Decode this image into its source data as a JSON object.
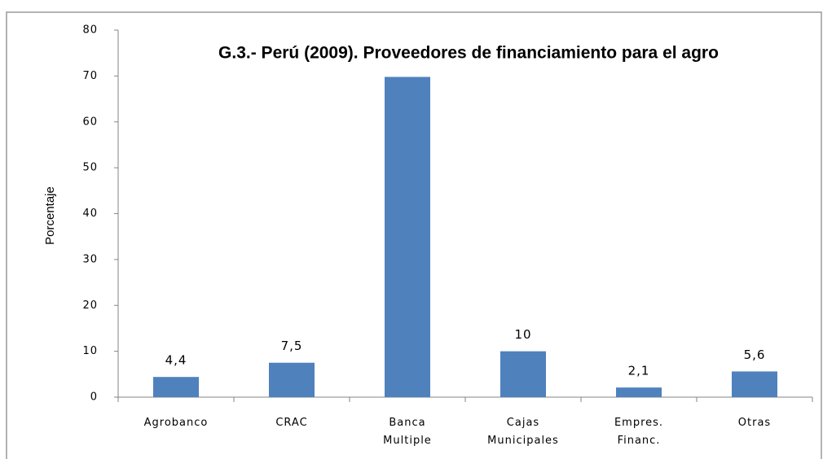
{
  "chart_data": {
    "type": "bar",
    "title": "G.3.- Perú (2009). Proveedores de financiamiento para el agro",
    "y_label": "Porcentaje",
    "categories": [
      "Agrobanco",
      "CRAC",
      "Banca Multiple",
      "Cajas Municipales",
      "Empres. Financ.",
      "Otras"
    ],
    "values": [
      4.4,
      7.5,
      69.8,
      10,
      2.1,
      5.6
    ],
    "value_labels": [
      "4,4",
      "7,5",
      null,
      "10",
      "2,1",
      "5,6"
    ],
    "color": "#4f81bd",
    "ylim": [
      0,
      80
    ],
    "yticks": [
      0,
      10,
      20,
      30,
      40,
      50,
      60,
      70,
      80
    ],
    "grid": false
  }
}
